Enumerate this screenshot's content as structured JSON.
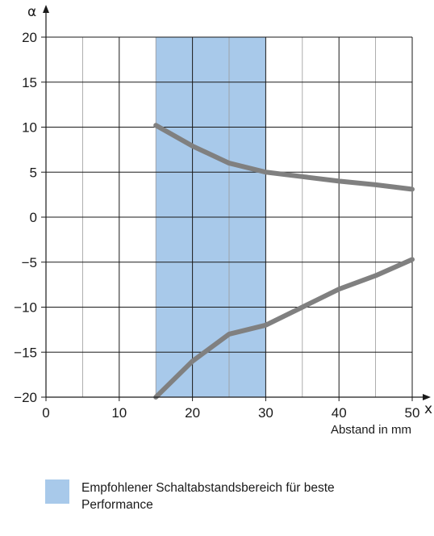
{
  "chart_data": {
    "type": "line",
    "x_axis_symbol": "x",
    "y_axis_symbol": "α",
    "xlabel": "Abstand in mm",
    "xlim": [
      0,
      50
    ],
    "ylim": [
      -20,
      20
    ],
    "x_ticks": [
      0,
      10,
      20,
      30,
      40,
      50
    ],
    "y_ticks": [
      20,
      15,
      10,
      5,
      0,
      -5,
      -10,
      -15,
      -20
    ],
    "x_tick_labels": [
      "0",
      "10",
      "20",
      "30",
      "40",
      "50"
    ],
    "y_tick_labels": [
      "20",
      "15",
      "10",
      "5",
      "0",
      "−5",
      "−10",
      "−15",
      "−20"
    ],
    "grid_major_x": [
      10,
      20,
      30,
      40
    ],
    "grid_minor_x": [
      5,
      15,
      25,
      35,
      45
    ],
    "grid_y": [
      15,
      10,
      5,
      0,
      -5,
      -10,
      -15
    ],
    "grid": true,
    "highlight_band": {
      "x_from": 15,
      "x_to": 30,
      "color": "#a8c9ea"
    },
    "line_color": "#808080",
    "series": [
      {
        "x": [
          15,
          20,
          25,
          30,
          35,
          40,
          45,
          50
        ],
        "y": [
          10.2,
          7.9,
          6.0,
          5.0,
          4.5,
          4.0,
          3.6,
          3.1
        ]
      },
      {
        "x": [
          15,
          20,
          25,
          30,
          35,
          40,
          45,
          50
        ],
        "y": [
          -20,
          -16,
          -13,
          -12,
          -10,
          -8,
          -6.5,
          -4.7
        ]
      }
    ],
    "legend": {
      "position": "bottom",
      "label": "Empfohlener Schaltabstandsbereich für beste Performance"
    }
  }
}
